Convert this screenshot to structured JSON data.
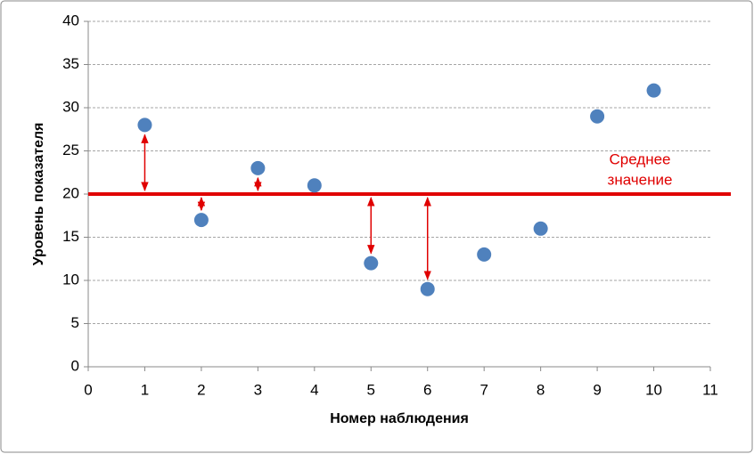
{
  "chart_data": {
    "type": "scatter",
    "x_label": "Номер наблюдения",
    "y_label": "Уровень показателя",
    "x": [
      1,
      2,
      3,
      4,
      5,
      6,
      7,
      8,
      9,
      10
    ],
    "y": [
      28,
      17,
      23,
      21,
      12,
      9,
      13,
      16,
      29,
      32
    ],
    "color": "#4f81bd",
    "mean": 20,
    "mean_color": "#e00000",
    "mean_label": [
      "Среднее",
      "значение"
    ],
    "deviation_arrows": [
      1,
      2,
      3,
      5,
      6
    ],
    "xlim": [
      0,
      11
    ],
    "xticks": [
      0,
      1,
      2,
      3,
      4,
      5,
      6,
      7,
      8,
      9,
      10,
      11
    ],
    "ylim": [
      0,
      40
    ],
    "yticks": [
      0,
      5,
      10,
      15,
      20,
      25,
      30,
      35,
      40
    ],
    "grid": true
  }
}
